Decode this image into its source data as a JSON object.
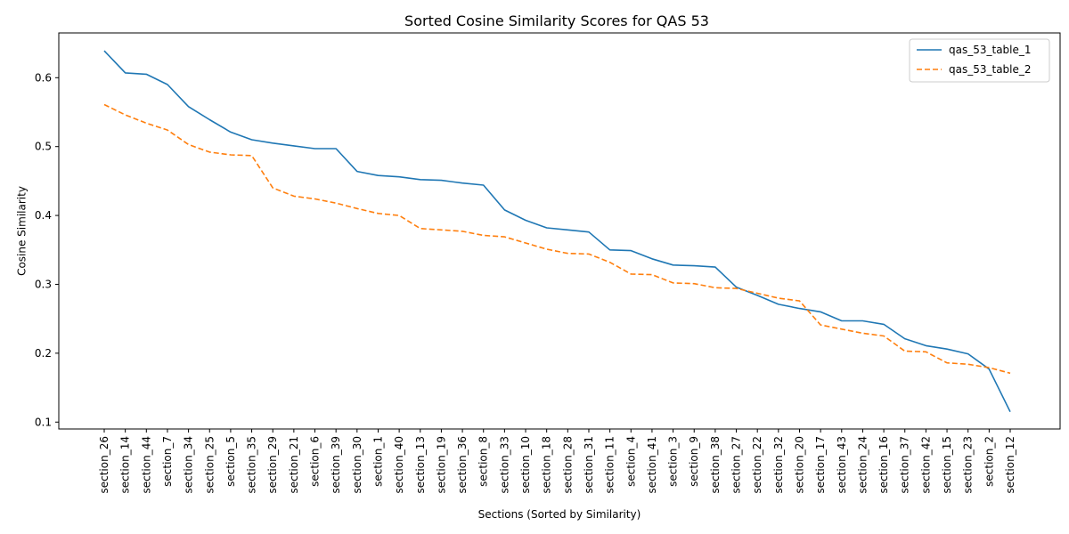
{
  "chart_data": {
    "type": "line",
    "title": "Sorted Cosine Similarity Scores for QAS 53",
    "xlabel": "Sections (Sorted by Similarity)",
    "ylabel": "Cosine Similarity",
    "ylim": [
      0.09,
      0.665
    ],
    "yticks": [
      "0.1",
      "0.2",
      "0.3",
      "0.4",
      "0.5",
      "0.6"
    ],
    "legend_position": "top-right",
    "grid": false,
    "categories": [
      "section_26",
      "section_14",
      "section_44",
      "section_7",
      "section_34",
      "section_25",
      "section_5",
      "section_35",
      "section_29",
      "section_21",
      "section_6",
      "section_39",
      "section_30",
      "section_1",
      "section_40",
      "section_13",
      "section_19",
      "section_36",
      "section_8",
      "section_33",
      "section_10",
      "section_18",
      "section_28",
      "section_31",
      "section_11",
      "section_4",
      "section_41",
      "section_3",
      "section_9",
      "section_38",
      "section_27",
      "section_22",
      "section_32",
      "section_20",
      "section_17",
      "section_43",
      "section_24",
      "section_16",
      "section_37",
      "section_42",
      "section_15",
      "section_23",
      "section_2",
      "section_12"
    ],
    "series": [
      {
        "name": "qas_53_table_1",
        "color": "#1f77b4",
        "style": "solid",
        "values": [
          0.639,
          0.607,
          0.605,
          0.59,
          0.558,
          0.539,
          0.521,
          0.51,
          0.505,
          0.501,
          0.497,
          0.497,
          0.464,
          0.458,
          0.456,
          0.452,
          0.451,
          0.447,
          0.444,
          0.408,
          0.393,
          0.382,
          0.379,
          0.376,
          0.35,
          0.349,
          0.337,
          0.328,
          0.327,
          0.325,
          0.296,
          0.284,
          0.271,
          0.265,
          0.26,
          0.247,
          0.247,
          0.242,
          0.221,
          0.211,
          0.206,
          0.199,
          0.177,
          0.115
        ]
      },
      {
        "name": "qas_53_table_2",
        "color": "#ff7f0e",
        "style": "dashed",
        "values": [
          0.561,
          0.546,
          0.534,
          0.524,
          0.503,
          0.492,
          0.488,
          0.487,
          0.44,
          0.428,
          0.424,
          0.418,
          0.41,
          0.403,
          0.4,
          0.381,
          0.379,
          0.377,
          0.371,
          0.369,
          0.36,
          0.351,
          0.345,
          0.344,
          0.332,
          0.315,
          0.314,
          0.302,
          0.301,
          0.295,
          0.294,
          0.287,
          0.28,
          0.276,
          0.241,
          0.235,
          0.229,
          0.225,
          0.203,
          0.202,
          0.186,
          0.184,
          0.179,
          0.171
        ]
      }
    ]
  }
}
